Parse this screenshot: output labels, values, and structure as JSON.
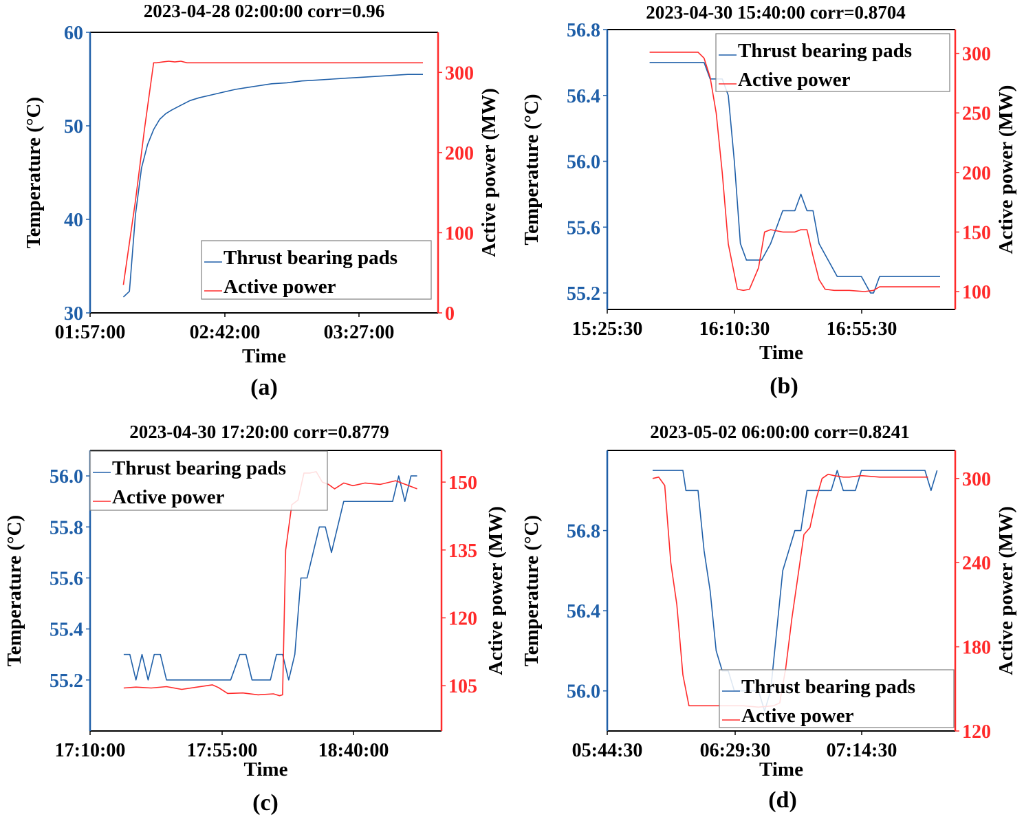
{
  "colors": {
    "temperature": "#1f5fa8",
    "power": "#ff2a2a",
    "frame": "#000000",
    "legend_border": "#7f7f7f"
  },
  "chart_data": [
    {
      "type": "line",
      "panel_label": "(a)",
      "title": "2023-04-28 02:00:00  corr=0.96",
      "xlabel": "Time",
      "ylabel_left": "Temperature (°C)",
      "ylabel_right": "Active power (MW)",
      "x_ticks": [
        "01:57:00",
        "02:42:00",
        "03:27:00"
      ],
      "xlim": [
        0,
        115
      ],
      "ylim_left": [
        30,
        60
      ],
      "yticks_left": [
        "30",
        "40",
        "50",
        "60"
      ],
      "ylim_right": [
        0,
        350
      ],
      "yticks_right": [
        "0",
        "100",
        "200",
        "300"
      ],
      "legend": [
        "Thrust bearing pads",
        "Active power"
      ],
      "legend_position": "lower-right",
      "series": [
        {
          "name": "Thrust bearing pads",
          "axis": "left",
          "x": [
            11,
            13,
            15,
            17,
            19,
            21,
            23,
            25,
            27,
            30,
            33,
            36,
            40,
            44,
            48,
            52,
            56,
            60,
            65,
            70,
            75,
            80,
            85,
            90,
            95,
            100,
            105,
            110
          ],
          "values": [
            31.7,
            32.3,
            40.5,
            45.5,
            48.0,
            49.6,
            50.7,
            51.3,
            51.7,
            52.2,
            52.7,
            53.0,
            53.3,
            53.6,
            53.9,
            54.1,
            54.3,
            54.5,
            54.6,
            54.8,
            54.9,
            55.0,
            55.1,
            55.2,
            55.3,
            55.4,
            55.5,
            55.5
          ]
        },
        {
          "name": "Active power",
          "axis": "right",
          "x": [
            11,
            15,
            18,
            21,
            22,
            24,
            26,
            28,
            30,
            32,
            35,
            40,
            50,
            60,
            70,
            80,
            90,
            100,
            110
          ],
          "values": [
            35,
            140,
            230,
            312,
            312,
            313,
            314,
            313,
            314,
            312,
            312,
            312,
            312,
            312,
            312,
            312,
            312,
            312,
            312
          ]
        }
      ]
    },
    {
      "type": "line",
      "panel_label": "(b)",
      "title": "2023-04-30 15:40:00 corr=0.8704",
      "xlabel": "Time",
      "ylabel_left": "Temperature (°C)",
      "ylabel_right": "Active power (MW)",
      "x_ticks": [
        "15:25:30",
        "16:10:30",
        "16:55:30"
      ],
      "xlim": [
        0,
        115
      ],
      "ylim_left": [
        55.1,
        56.8
      ],
      "yticks_left": [
        "55.2",
        "55.6",
        "56.0",
        "56.4",
        "56.8"
      ],
      "ylim_right": [
        85,
        320
      ],
      "yticks_right": [
        "100",
        "150",
        "200",
        "250",
        "300"
      ],
      "legend": [
        "Thrust bearing pads",
        "Active power"
      ],
      "legend_position": "top-right",
      "series": [
        {
          "name": "Thrust bearing pads",
          "axis": "left",
          "x": [
            14,
            20,
            25,
            32,
            34,
            36,
            38,
            40,
            42,
            44,
            46,
            48,
            51,
            54,
            58,
            60,
            62,
            64,
            66,
            68,
            70,
            73,
            76,
            80,
            84,
            87,
            88,
            90,
            100,
            110
          ],
          "values": [
            56.6,
            56.6,
            56.6,
            56.6,
            56.5,
            56.5,
            56.5,
            56.4,
            56.0,
            55.5,
            55.4,
            55.4,
            55.4,
            55.5,
            55.7,
            55.7,
            55.7,
            55.8,
            55.7,
            55.7,
            55.5,
            55.4,
            55.3,
            55.3,
            55.3,
            55.2,
            55.2,
            55.3,
            55.3,
            55.3
          ]
        },
        {
          "name": "Active power",
          "axis": "right",
          "x": [
            14,
            20,
            25,
            30,
            32,
            34,
            36,
            38,
            40,
            43,
            45,
            47,
            50,
            52,
            54,
            58,
            60,
            62,
            64,
            66,
            68,
            70,
            72,
            75,
            80,
            85,
            88,
            90,
            100,
            110
          ],
          "values": [
            301,
            301,
            301,
            301,
            296,
            280,
            250,
            200,
            140,
            102,
            101,
            102,
            120,
            150,
            152,
            150,
            150,
            150,
            152,
            152,
            130,
            110,
            102,
            101,
            101,
            100,
            101,
            104,
            104,
            104
          ]
        }
      ]
    },
    {
      "type": "line",
      "panel_label": "(c)",
      "title": "2023-04-30 17:20:00 corr=0.8779",
      "xlabel": "Time",
      "ylabel_left": "Temperature (°C)",
      "ylabel_right": "Active power (MW)",
      "x_ticks": [
        "17:10:00",
        "17:55:00",
        "18:40:00"
      ],
      "xlim": [
        0,
        115
      ],
      "ylim_left": [
        55.0,
        56.1
      ],
      "yticks_left": [
        "55.2",
        "55.4",
        "55.6",
        "55.8",
        "56.0"
      ],
      "ylim_right": [
        95,
        157
      ],
      "yticks_right": [
        "105",
        "120",
        "135",
        "150"
      ],
      "legend": [
        "Thrust bearing pads",
        "Active power"
      ],
      "legend_position": "top-left",
      "series": [
        {
          "name": "Thrust bearing pads",
          "axis": "left",
          "x": [
            11,
            13,
            15,
            17,
            19,
            21,
            23,
            25,
            27,
            31,
            36,
            41,
            46,
            49,
            51,
            53,
            55,
            57,
            59,
            61,
            63,
            65,
            67,
            69,
            71,
            73,
            75,
            77,
            79,
            81,
            83,
            85,
            87,
            90,
            95,
            99,
            101,
            103,
            105,
            107
          ],
          "values": [
            55.3,
            55.3,
            55.2,
            55.3,
            55.2,
            55.3,
            55.3,
            55.2,
            55.2,
            55.2,
            55.2,
            55.2,
            55.2,
            55.3,
            55.3,
            55.2,
            55.2,
            55.2,
            55.2,
            55.3,
            55.3,
            55.2,
            55.3,
            55.6,
            55.6,
            55.7,
            55.8,
            55.8,
            55.7,
            55.8,
            55.9,
            55.9,
            55.9,
            55.9,
            55.9,
            55.9,
            56.0,
            55.9,
            56.0,
            56.0
          ]
        },
        {
          "name": "Active power",
          "axis": "right",
          "x": [
            11,
            15,
            20,
            25,
            30,
            35,
            40,
            42,
            45,
            50,
            55,
            60,
            62,
            63,
            64,
            66,
            68,
            70,
            72,
            74,
            76,
            78,
            80,
            83,
            86,
            90,
            95,
            100,
            104,
            107
          ],
          "values": [
            104.5,
            104.7,
            104.5,
            104.8,
            104.2,
            104.7,
            105.2,
            104.6,
            103.3,
            103.4,
            103.0,
            103.2,
            102.8,
            103.0,
            135,
            145,
            146,
            152,
            152,
            152.3,
            150,
            149.5,
            148.5,
            149.8,
            149.2,
            149.8,
            149.5,
            150.3,
            149.3,
            148.5
          ]
        }
      ]
    },
    {
      "type": "line",
      "panel_label": "(d)",
      "title": "2023-05-02 06:00:00  corr=0.8241",
      "xlabel": "Time",
      "ylabel_left": "Temperature (°C)",
      "ylabel_right": "Active power (MW)",
      "x_ticks": [
        "05:44:30",
        "06:29:30",
        "07:14:30"
      ],
      "xlim": [
        0,
        115
      ],
      "ylim_left": [
        55.8,
        57.2
      ],
      "yticks_left": [
        "56.0",
        "56.4",
        "56.8"
      ],
      "ylim_right": [
        120,
        320
      ],
      "yticks_right": [
        "120",
        "180",
        "240",
        "300"
      ],
      "legend": [
        "Thrust bearing pads",
        "Active power"
      ],
      "legend_position": "lower-right",
      "series": [
        {
          "name": "Thrust bearing pads",
          "axis": "left",
          "x": [
            15,
            20,
            25,
            26,
            28,
            30,
            32,
            34,
            36,
            38,
            40,
            42,
            44,
            46,
            48,
            50,
            52,
            54,
            56,
            58,
            60,
            62,
            64,
            66,
            68,
            70,
            72,
            74,
            76,
            78,
            80,
            82,
            84,
            86,
            88,
            90,
            95,
            100,
            105,
            107,
            109
          ],
          "values": [
            57.1,
            57.1,
            57.1,
            57.0,
            57.0,
            57.0,
            56.7,
            56.5,
            56.2,
            56.1,
            56.1,
            56.0,
            56.0,
            56.0,
            56.0,
            56.0,
            55.9,
            56.0,
            56.3,
            56.6,
            56.7,
            56.8,
            56.8,
            57.0,
            57.0,
            57.0,
            57.0,
            57.0,
            57.1,
            57.0,
            57.0,
            57.0,
            57.1,
            57.1,
            57.1,
            57.1,
            57.1,
            57.1,
            57.1,
            57.0,
            57.1
          ]
        },
        {
          "name": "Active power",
          "axis": "right",
          "x": [
            15,
            17,
            19,
            21,
            23,
            25,
            27,
            29,
            31,
            35,
            40,
            45,
            50,
            55,
            57,
            59,
            61,
            63,
            65,
            67,
            69,
            71,
            73,
            75,
            78,
            80,
            84,
            90,
            95,
            100,
            104,
            106
          ],
          "values": [
            300,
            301,
            295,
            240,
            210,
            160,
            138,
            138,
            138,
            138,
            138,
            138,
            137,
            138,
            140,
            165,
            200,
            230,
            260,
            265,
            285,
            300,
            303,
            302,
            301,
            301,
            302,
            301,
            301,
            301,
            301,
            301
          ]
        }
      ]
    }
  ]
}
